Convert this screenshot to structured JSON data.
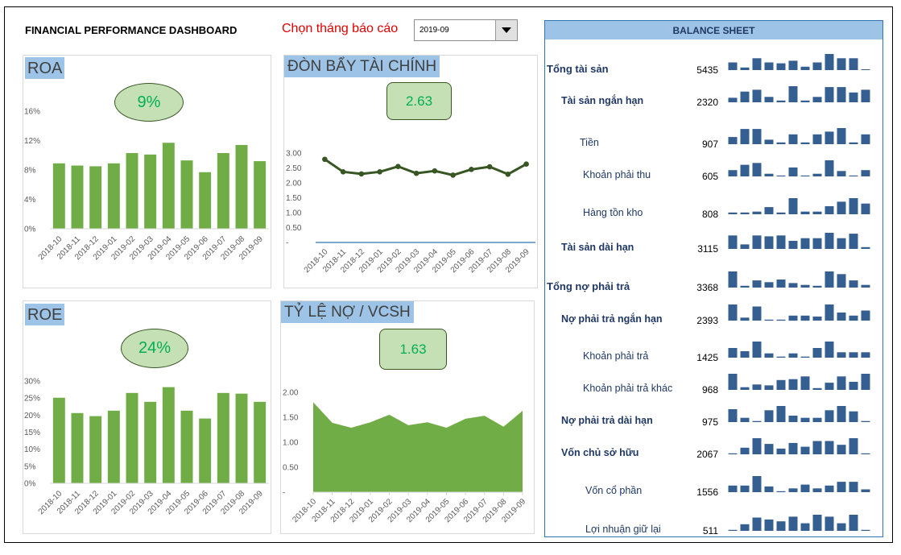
{
  "header": {
    "title": "FINANCIAL PERFORMANCE DASHBOARD",
    "month_label": "Chọn tháng báo cáo",
    "month_selected": "2019-09"
  },
  "colors": {
    "bar_green": "#70ad47",
    "line_dark_green": "#375623",
    "kpi_text": "#00b050",
    "kpi_fill": "#c5e0b4",
    "title_fill": "#9dc3e6",
    "spark_blue": "#365f91",
    "month_label": "#e00000"
  },
  "chart_data": [
    {
      "id": "roa",
      "type": "bar",
      "title": "ROA",
      "kpi": "9%",
      "categories": [
        "2018-10",
        "2018-11",
        "2018-12",
        "2019-01",
        "2019-02",
        "2019-03",
        "2019-04",
        "2019-05",
        "2019-06",
        "2019-07",
        "2019-08",
        "2019-09"
      ],
      "values": [
        8.9,
        8.6,
        8.5,
        8.9,
        10.3,
        10.1,
        11.7,
        9.3,
        7.7,
        10.3,
        11.4,
        9.2
      ],
      "yticks": [
        "0%",
        "4%",
        "8%",
        "12%",
        "16%"
      ],
      "ytick_values": [
        0,
        4,
        8,
        12,
        16
      ],
      "ylim": [
        0,
        16
      ],
      "xlabel": "",
      "ylabel": ""
    },
    {
      "id": "leverage",
      "type": "line",
      "title": "ĐÒN BẨY TÀI CHÍNH",
      "kpi": "2.63",
      "categories": [
        "2018-10",
        "2018-11",
        "2018-12",
        "2019-01",
        "2019-02",
        "2019-03",
        "2019-04",
        "2019-05",
        "2019-06",
        "2019-07",
        "2019-08",
        "2019-09"
      ],
      "values": [
        2.79,
        2.37,
        2.3,
        2.37,
        2.55,
        2.32,
        2.4,
        2.26,
        2.45,
        2.54,
        2.29,
        2.63
      ],
      "yticks": [
        "-",
        "0.50",
        "1.00",
        "1.50",
        "2.00",
        "2.50",
        "3.00"
      ],
      "ytick_values": [
        0,
        0.5,
        1,
        1.5,
        2,
        2.5,
        3
      ],
      "ylim": [
        0,
        3
      ],
      "xlabel": "",
      "ylabel": ""
    },
    {
      "id": "roe",
      "type": "bar",
      "title": "ROE",
      "kpi": "24%",
      "categories": [
        "2018-10",
        "2018-11",
        "2018-12",
        "2019-01",
        "2019-02",
        "2019-03",
        "2019-04",
        "2019-05",
        "2019-06",
        "2019-07",
        "2019-08",
        "2019-09"
      ],
      "values": [
        25.1,
        20.6,
        19.7,
        21.3,
        26.5,
        23.9,
        28.2,
        21.3,
        19.0,
        26.5,
        26.3,
        23.9
      ],
      "yticks": [
        "0%",
        "5%",
        "10%",
        "15%",
        "20%",
        "25%",
        "30%"
      ],
      "ytick_values": [
        0,
        5,
        10,
        15,
        20,
        25,
        30
      ],
      "ylim": [
        0,
        30
      ],
      "xlabel": "",
      "ylabel": ""
    },
    {
      "id": "debt_equity",
      "type": "area",
      "title": "TỶ LỆ NỢ / VCSH",
      "kpi": "1.63",
      "categories": [
        "2018-10",
        "2018-11",
        "2018-12",
        "2019-01",
        "2019-02",
        "2019-03",
        "2019-04",
        "2019-05",
        "2019-06",
        "2019-07",
        "2019-08",
        "2019-09"
      ],
      "values": [
        1.8,
        1.39,
        1.29,
        1.4,
        1.55,
        1.34,
        1.4,
        1.29,
        1.47,
        1.53,
        1.31,
        1.63
      ],
      "yticks": [
        "-",
        "0.50",
        "1.00",
        "1.50",
        "2.00"
      ],
      "ytick_values": [
        0,
        0.5,
        1,
        1.5,
        2
      ],
      "ylim": [
        0,
        2
      ],
      "xlabel": "",
      "ylabel": ""
    }
  ],
  "balance_sheet": {
    "title": "BALANCE SHEET",
    "rows": [
      {
        "label": "Tổng tài sản",
        "value": "5435",
        "level": 0,
        "bold": true,
        "trend": [
          27,
          9,
          42,
          27,
          24,
          33,
          12,
          27,
          57,
          42,
          42,
          2
        ]
      },
      {
        "label": "Tài sản ngắn hạn",
        "value": "2320",
        "level": 1,
        "bold": true,
        "trend": [
          15,
          36,
          42,
          18,
          6,
          54,
          6,
          18,
          51,
          51,
          33,
          42
        ]
      },
      {
        "label": "Tiền",
        "value": "907",
        "level": 2,
        "bold": false,
        "trend": [
          24,
          51,
          51,
          15,
          6,
          33,
          6,
          33,
          42,
          54,
          6,
          33
        ]
      },
      {
        "label": "Khoản phải thu",
        "value": "605",
        "level": 2,
        "bold": false,
        "trend": [
          21,
          39,
          45,
          9,
          3,
          30,
          3,
          9,
          54,
          18,
          3,
          21
        ]
      },
      {
        "label": "Hàng tồn kho",
        "value": "808",
        "level": 2,
        "bold": false,
        "trend": [
          6,
          6,
          9,
          24,
          6,
          54,
          9,
          9,
          27,
          42,
          54,
          36
        ]
      },
      {
        "label": "Tài sản dài hạn",
        "value": "3115",
        "level": 1,
        "bold": true,
        "trend": [
          45,
          15,
          45,
          42,
          45,
          27,
          36,
          36,
          54,
          36,
          51,
          6
        ]
      },
      {
        "label": "Tổng nợ phải trả",
        "value": "3368",
        "level": 0,
        "bold": true,
        "trend": [
          54,
          6,
          24,
          18,
          27,
          15,
          9,
          6,
          54,
          45,
          24,
          9
        ]
      },
      {
        "label": "Nợ phải trả ngắn hạn",
        "value": "2393",
        "level": 1,
        "bold": true,
        "trend": [
          48,
          9,
          42,
          3,
          3,
          15,
          15,
          12,
          48,
          24,
          15,
          30
        ]
      },
      {
        "label": "Khoản phải trả",
        "value": "1425",
        "level": 2,
        "bold": false,
        "trend": [
          27,
          18,
          45,
          12,
          3,
          12,
          3,
          27,
          45,
          15,
          15,
          15
        ]
      },
      {
        "label": "Khoản phải trả khác",
        "value": "968",
        "level": 2,
        "bold": false,
        "trend": [
          54,
          9,
          18,
          15,
          33,
          36,
          45,
          6,
          24,
          45,
          27,
          54
        ]
      },
      {
        "label": "Nợ phải trả dài hạn",
        "value": "975",
        "level": 1,
        "bold": true,
        "trend": [
          36,
          12,
          3,
          33,
          45,
          18,
          12,
          12,
          33,
          45,
          30,
          3
        ]
      },
      {
        "label": "Vốn chủ sở hữu",
        "value": "2067",
        "level": 1,
        "bold": true,
        "trend": [
          3,
          21,
          51,
          33,
          18,
          36,
          24,
          42,
          42,
          30,
          51,
          3
        ]
      },
      {
        "label": "Vốn cổ phần",
        "value": "1556",
        "level": 2,
        "bold": false,
        "trend": [
          21,
          21,
          51,
          18,
          3,
          12,
          24,
          12,
          21,
          33,
          33,
          9
        ]
      },
      {
        "label": "Lợi nhuận giữ lại",
        "value": "511",
        "level": 2,
        "bold": false,
        "trend": [
          3,
          21,
          42,
          36,
          30,
          45,
          24,
          51,
          45,
          24,
          51,
          3
        ]
      }
    ]
  }
}
